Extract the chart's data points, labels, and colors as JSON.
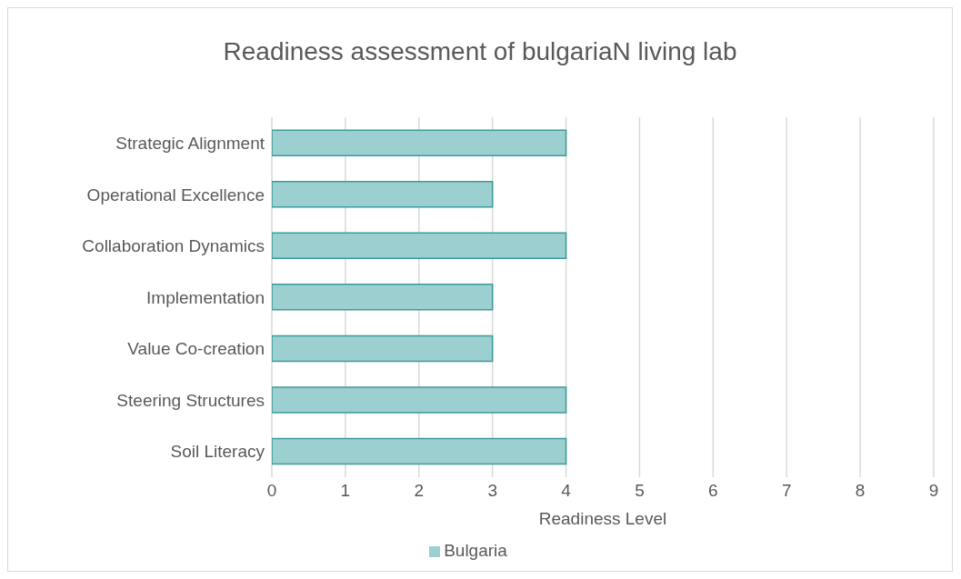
{
  "chart_data": {
    "type": "bar",
    "orientation": "horizontal",
    "title": "Readiness assessment of bulgariaN living lab",
    "xlabel": "Readiness Level",
    "categories": [
      "Strategic Alignment",
      "Operational Excellence",
      "Collaboration Dynamics",
      "Implementation",
      "Value Co-creation",
      "Steering Structures",
      "Soil Literacy"
    ],
    "series": [
      {
        "name": "Bulgaria",
        "color": "#9ccfcf",
        "values": [
          4,
          3,
          4,
          3,
          3,
          4,
          4
        ]
      }
    ],
    "xlim": [
      0,
      9
    ],
    "xticks": [
      0,
      1,
      2,
      3,
      4,
      5,
      6,
      7,
      8,
      9
    ],
    "grid": "x",
    "legend": "bottom"
  }
}
